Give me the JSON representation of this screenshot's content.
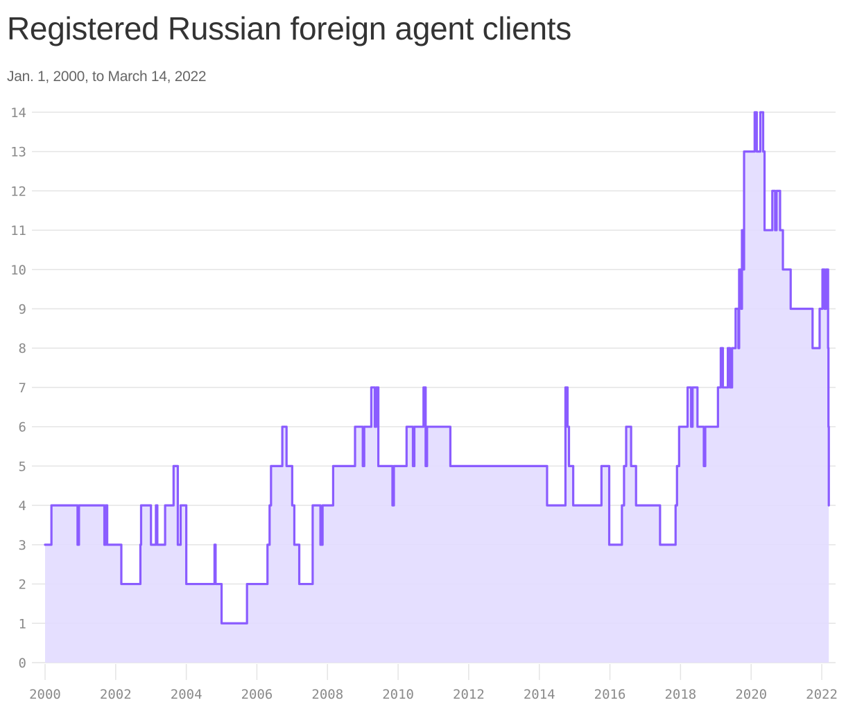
{
  "header": {
    "title": "Registered Russian foreign agent clients",
    "subtitle": "Jan. 1, 2000, to March 14, 2022"
  },
  "colors": {
    "line": "#8a5cff",
    "fill": "#e2dcff",
    "grid": "#e4e4e4",
    "text": "#333333",
    "tick": "#8a8a8a"
  },
  "chart_data": {
    "type": "area",
    "subtype": "step",
    "title": "Registered Russian foreign agent clients",
    "subtitle": "Jan. 1, 2000, to March 14, 2022",
    "xlabel": "",
    "ylabel": "",
    "xlim": [
      2000,
      2022.2
    ],
    "ylim": [
      0,
      14
    ],
    "grid": true,
    "legend": null,
    "x_ticks": [
      "2000",
      "2002",
      "2004",
      "2006",
      "2008",
      "2010",
      "2012",
      "2014",
      "2016",
      "2018",
      "2020",
      "2022"
    ],
    "y_ticks": [
      "0",
      "1",
      "2",
      "3",
      "4",
      "5",
      "6",
      "7",
      "8",
      "9",
      "10",
      "11",
      "12",
      "13",
      "14"
    ],
    "series": [
      {
        "name": "Registered Russian foreign agent clients",
        "steps": [
          [
            2000.0,
            3
          ],
          [
            2000.18,
            4
          ],
          [
            2000.92,
            3
          ],
          [
            2000.96,
            4
          ],
          [
            2001.68,
            3
          ],
          [
            2001.72,
            4
          ],
          [
            2001.76,
            3
          ],
          [
            2002.16,
            2
          ],
          [
            2002.7,
            3
          ],
          [
            2002.72,
            4
          ],
          [
            2003.0,
            3
          ],
          [
            2003.14,
            4
          ],
          [
            2003.18,
            3
          ],
          [
            2003.4,
            4
          ],
          [
            2003.64,
            5
          ],
          [
            2003.76,
            3
          ],
          [
            2003.84,
            4
          ],
          [
            2004.0,
            2
          ],
          [
            2004.8,
            3
          ],
          [
            2004.83,
            2
          ],
          [
            2005.0,
            1
          ],
          [
            2005.72,
            2
          ],
          [
            2006.3,
            3
          ],
          [
            2006.36,
            4
          ],
          [
            2006.4,
            5
          ],
          [
            2006.72,
            6
          ],
          [
            2006.84,
            5
          ],
          [
            2007.0,
            4
          ],
          [
            2007.06,
            3
          ],
          [
            2007.2,
            2
          ],
          [
            2007.58,
            4
          ],
          [
            2007.8,
            3
          ],
          [
            2007.86,
            4
          ],
          [
            2008.16,
            5
          ],
          [
            2008.78,
            6
          ],
          [
            2009.0,
            5
          ],
          [
            2009.04,
            6
          ],
          [
            2009.24,
            7
          ],
          [
            2009.34,
            6
          ],
          [
            2009.38,
            7
          ],
          [
            2009.44,
            5
          ],
          [
            2009.84,
            4
          ],
          [
            2009.88,
            5
          ],
          [
            2010.24,
            6
          ],
          [
            2010.42,
            5
          ],
          [
            2010.46,
            6
          ],
          [
            2010.72,
            7
          ],
          [
            2010.78,
            5
          ],
          [
            2010.82,
            6
          ],
          [
            2011.48,
            5
          ],
          [
            2014.22,
            4
          ],
          [
            2014.74,
            7
          ],
          [
            2014.8,
            6
          ],
          [
            2014.84,
            5
          ],
          [
            2014.96,
            4
          ],
          [
            2015.76,
            5
          ],
          [
            2015.98,
            3
          ],
          [
            2016.34,
            4
          ],
          [
            2016.4,
            5
          ],
          [
            2016.46,
            6
          ],
          [
            2016.6,
            5
          ],
          [
            2016.74,
            4
          ],
          [
            2017.42,
            3
          ],
          [
            2017.86,
            4
          ],
          [
            2017.9,
            5
          ],
          [
            2017.96,
            6
          ],
          [
            2018.2,
            7
          ],
          [
            2018.3,
            6
          ],
          [
            2018.34,
            7
          ],
          [
            2018.48,
            6
          ],
          [
            2018.66,
            5
          ],
          [
            2018.7,
            6
          ],
          [
            2019.06,
            7
          ],
          [
            2019.14,
            8
          ],
          [
            2019.2,
            7
          ],
          [
            2019.34,
            8
          ],
          [
            2019.4,
            7
          ],
          [
            2019.46,
            8
          ],
          [
            2019.56,
            9
          ],
          [
            2019.64,
            8
          ],
          [
            2019.66,
            10
          ],
          [
            2019.72,
            9
          ],
          [
            2019.74,
            11
          ],
          [
            2019.78,
            10
          ],
          [
            2019.8,
            13
          ],
          [
            2020.1,
            14
          ],
          [
            2020.16,
            13
          ],
          [
            2020.26,
            14
          ],
          [
            2020.34,
            13
          ],
          [
            2020.38,
            11
          ],
          [
            2020.6,
            12
          ],
          [
            2020.68,
            11
          ],
          [
            2020.72,
            12
          ],
          [
            2020.82,
            11
          ],
          [
            2020.9,
            10
          ],
          [
            2021.12,
            9
          ],
          [
            2021.74,
            8
          ],
          [
            2021.94,
            9
          ],
          [
            2022.02,
            10
          ],
          [
            2022.08,
            9
          ],
          [
            2022.12,
            10
          ],
          [
            2022.18,
            8
          ],
          [
            2022.19,
            6
          ],
          [
            2022.2,
            5
          ],
          [
            2022.2,
            4
          ]
        ],
        "end_x": 2022.2
      }
    ]
  }
}
